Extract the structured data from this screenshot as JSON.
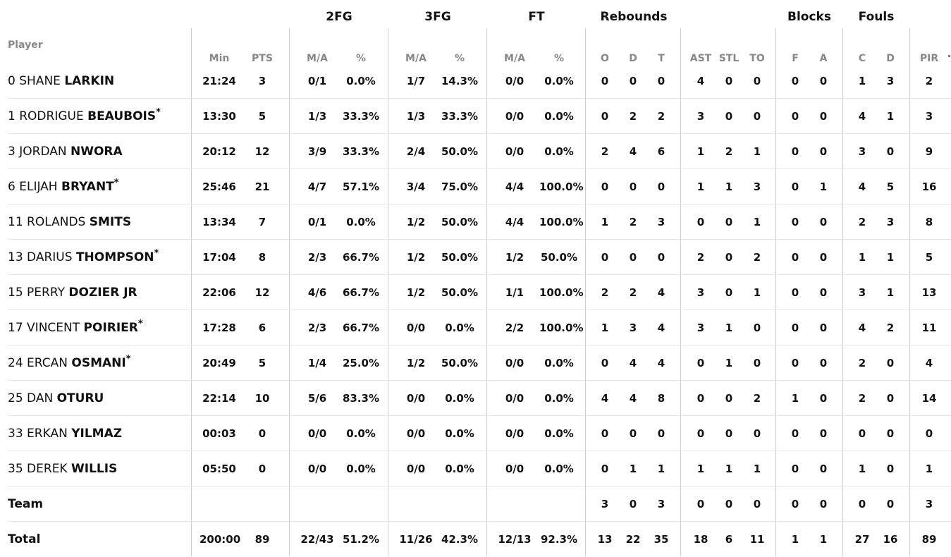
{
  "headers": {
    "groups": [
      {
        "key": "2fg",
        "label": "2FG"
      },
      {
        "key": "3fg",
        "label": "3FG"
      },
      {
        "key": "ft",
        "label": "FT"
      },
      {
        "key": "reb",
        "label": "Rebounds"
      },
      {
        "key": "blk",
        "label": "Blocks"
      },
      {
        "key": "fouls",
        "label": "Fouls"
      }
    ],
    "player_label": "Player",
    "columns": [
      "Min",
      "PTS",
      "M/A",
      "%",
      "M/A",
      "%",
      "M/A",
      "%",
      "O",
      "D",
      "T",
      "AST",
      "STL",
      "TO",
      "F",
      "A",
      "C",
      "D",
      "PIR"
    ]
  },
  "players": [
    {
      "num": "0",
      "first": "SHANE",
      "last": "LARKIN",
      "star": "",
      "stats": [
        "21:24",
        "3",
        "0/1",
        "0.0%",
        "1/7",
        "14.3%",
        "0/0",
        "0.0%",
        "0",
        "0",
        "0",
        "4",
        "0",
        "0",
        "0",
        "0",
        "1",
        "3",
        "2"
      ]
    },
    {
      "num": "1",
      "first": "RODRIGUE",
      "last": "BEAUBOIS",
      "star": "*",
      "stats": [
        "13:30",
        "5",
        "1/3",
        "33.3%",
        "1/3",
        "33.3%",
        "0/0",
        "0.0%",
        "0",
        "2",
        "2",
        "3",
        "0",
        "0",
        "0",
        "0",
        "4",
        "1",
        "3"
      ]
    },
    {
      "num": "3",
      "first": "JORDAN",
      "last": "NWORA",
      "star": "",
      "stats": [
        "20:12",
        "12",
        "3/9",
        "33.3%",
        "2/4",
        "50.0%",
        "0/0",
        "0.0%",
        "2",
        "4",
        "6",
        "1",
        "2",
        "1",
        "0",
        "0",
        "3",
        "0",
        "9"
      ]
    },
    {
      "num": "6",
      "first": "ELIJAH",
      "last": "BRYANT",
      "star": "*",
      "stats": [
        "25:46",
        "21",
        "4/7",
        "57.1%",
        "3/4",
        "75.0%",
        "4/4",
        "100.0%",
        "0",
        "0",
        "0",
        "1",
        "1",
        "3",
        "0",
        "1",
        "4",
        "5",
        "16"
      ]
    },
    {
      "num": "11",
      "first": "ROLANDS",
      "last": "SMITS",
      "star": "",
      "stats": [
        "13:34",
        "7",
        "0/1",
        "0.0%",
        "1/2",
        "50.0%",
        "4/4",
        "100.0%",
        "1",
        "2",
        "3",
        "0",
        "0",
        "1",
        "0",
        "0",
        "2",
        "3",
        "8"
      ]
    },
    {
      "num": "13",
      "first": "DARIUS",
      "last": "THOMPSON",
      "star": "*",
      "stats": [
        "17:04",
        "8",
        "2/3",
        "66.7%",
        "1/2",
        "50.0%",
        "1/2",
        "50.0%",
        "0",
        "0",
        "0",
        "2",
        "0",
        "2",
        "0",
        "0",
        "1",
        "1",
        "5"
      ]
    },
    {
      "num": "15",
      "first": "PERRY",
      "last": "DOZIER JR",
      "star": "",
      "stats": [
        "22:06",
        "12",
        "4/6",
        "66.7%",
        "1/2",
        "50.0%",
        "1/1",
        "100.0%",
        "2",
        "2",
        "4",
        "3",
        "0",
        "1",
        "0",
        "0",
        "3",
        "1",
        "13"
      ]
    },
    {
      "num": "17",
      "first": "VINCENT",
      "last": "POIRIER",
      "star": "*",
      "stats": [
        "17:28",
        "6",
        "2/3",
        "66.7%",
        "0/0",
        "0.0%",
        "2/2",
        "100.0%",
        "1",
        "3",
        "4",
        "3",
        "1",
        "0",
        "0",
        "0",
        "4",
        "2",
        "11"
      ]
    },
    {
      "num": "24",
      "first": "ERCAN",
      "last": "OSMANI",
      "star": "*",
      "stats": [
        "20:49",
        "5",
        "1/4",
        "25.0%",
        "1/2",
        "50.0%",
        "0/0",
        "0.0%",
        "0",
        "4",
        "4",
        "0",
        "1",
        "0",
        "0",
        "0",
        "2",
        "0",
        "4"
      ]
    },
    {
      "num": "25",
      "first": "DAN",
      "last": "OTURU",
      "star": "",
      "stats": [
        "22:14",
        "10",
        "5/6",
        "83.3%",
        "0/0",
        "0.0%",
        "0/0",
        "0.0%",
        "4",
        "4",
        "8",
        "0",
        "0",
        "2",
        "1",
        "0",
        "2",
        "0",
        "14"
      ]
    },
    {
      "num": "33",
      "first": "ERKAN",
      "last": "YILMAZ",
      "star": "",
      "stats": [
        "00:03",
        "0",
        "0/0",
        "0.0%",
        "0/0",
        "0.0%",
        "0/0",
        "0.0%",
        "0",
        "0",
        "0",
        "0",
        "0",
        "0",
        "0",
        "0",
        "0",
        "0",
        "0"
      ]
    },
    {
      "num": "35",
      "first": "DEREK",
      "last": "WILLIS",
      "star": "",
      "stats": [
        "05:50",
        "0",
        "0/0",
        "0.0%",
        "0/0",
        "0.0%",
        "0/0",
        "0.0%",
        "0",
        "1",
        "1",
        "1",
        "1",
        "1",
        "0",
        "0",
        "1",
        "0",
        "1"
      ]
    }
  ],
  "team": {
    "label": "Team",
    "stats": [
      "",
      "",
      "",
      "",
      "",
      "",
      "",
      "",
      "3",
      "0",
      "3",
      "0",
      "0",
      "0",
      "0",
      "0",
      "0",
      "0",
      "3"
    ]
  },
  "total": {
    "label": "Total",
    "stats": [
      "200:00",
      "89",
      "22/43",
      "51.2%",
      "11/26",
      "42.3%",
      "12/13",
      "92.3%",
      "13",
      "22",
      "35",
      "18",
      "6",
      "11",
      "1",
      "1",
      "27",
      "16",
      "89"
    ]
  }
}
